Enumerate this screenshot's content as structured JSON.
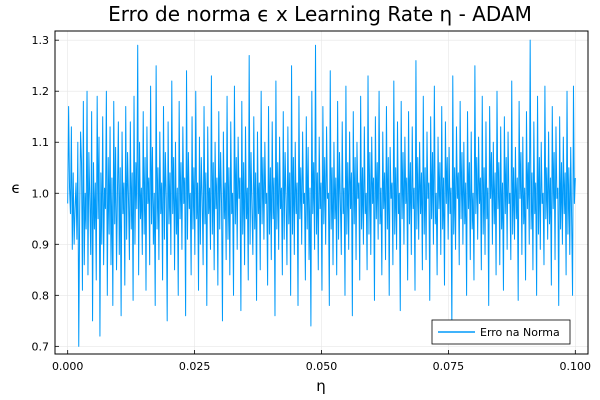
{
  "chart_data": {
    "type": "line",
    "title": "Erro de norma ϵ x Learning Rate η - ADAM",
    "xlabel": "η",
    "ylabel": "ϵ",
    "xlim": [
      -0.0025,
      0.1025
    ],
    "ylim": [
      0.685,
      1.318
    ],
    "xticks": [
      0.0,
      0.025,
      0.05,
      0.075,
      0.1
    ],
    "xtick_labels": [
      "0.000",
      "0.025",
      "0.050",
      "0.075",
      "0.100"
    ],
    "yticks": [
      0.7,
      0.8,
      0.9,
      1.0,
      1.1,
      1.2,
      1.3
    ],
    "ytick_labels": [
      "0.7",
      "0.8",
      "0.9",
      "1.0",
      "1.1",
      "1.2",
      "1.3"
    ],
    "grid": true,
    "legend_position": "bottom-right",
    "series": [
      {
        "name": "Erro na Norma",
        "color": "#009AFA",
        "x_start": 0.0,
        "x_end": 0.1,
        "y": [
          0.98,
          1.17,
          1.01,
          0.96,
          1.13,
          0.89,
          1.04,
          0.9,
          0.97,
          1.02,
          0.91,
          1.1,
          0.7,
          0.96,
          1.12,
          1.06,
          0.81,
          1.18,
          0.86,
          1.0,
          0.93,
          1.2,
          0.84,
          1.08,
          0.99,
          0.88,
          1.16,
          0.75,
          1.06,
          0.93,
          1.02,
          0.83,
          1.19,
          0.95,
          1.11,
          0.72,
          1.04,
          0.9,
          1.15,
          0.86,
          1.01,
          0.97,
          1.2,
          0.8,
          1.07,
          0.92,
          1.13,
          0.86,
          1.03,
          0.78,
          1.18,
          0.94,
          1.09,
          0.85,
          1.0,
          1.14,
          0.88,
          1.05,
          0.76,
          1.12,
          0.96,
          1.02,
          0.82,
          1.17,
          0.91,
          1.08,
          0.99,
          0.87,
          1.14,
          0.93,
          1.04,
          0.79,
          1.19,
          0.9,
          1.06,
          0.97,
          1.29,
          0.84,
          1.1,
          0.95,
          1.01,
          0.88,
          1.16,
          0.92,
          1.07,
          0.81,
          1.13,
          0.98,
          1.03,
          0.86,
          1.21,
          0.94,
          1.09,
          0.9,
          1.0,
          0.78,
          1.25,
          0.93,
          1.05,
          0.87,
          1.12,
          0.96,
          1.02,
          0.83,
          1.17,
          0.91,
          1.08,
          0.99,
          0.75,
          1.14,
          0.94,
          1.04,
          0.88,
          1.22,
          0.96,
          1.07,
          0.85,
          1.1,
          0.92,
          1.01,
          0.8,
          1.18,
          0.95,
          1.06,
          0.89,
          1.13,
          0.98,
          1.03,
          0.76,
          1.24,
          0.91,
          1.08,
          0.97,
          1.0,
          0.84,
          1.15,
          0.93,
          1.05,
          0.88,
          1.2,
          0.95,
          1.02,
          0.81,
          1.11,
          0.9,
          1.07,
          0.99,
          0.86,
          1.17,
          0.94,
          1.04,
          0.78,
          1.13,
          0.96,
          1.01,
          0.89,
          1.23,
          0.92,
          1.06,
          0.85,
          1.1,
          0.97,
          1.03,
          0.82,
          1.16,
          0.93,
          1.08,
          0.98,
          0.75,
          1.12,
          0.95,
          1.02,
          0.87,
          1.19,
          0.91,
          1.05,
          0.84,
          1.14,
          0.96,
          1.0,
          0.8,
          1.21,
          0.94,
          1.07,
          0.89,
          1.11,
          0.99,
          1.03,
          0.77,
          1.18,
          0.92,
          1.06,
          0.86,
          1.13,
          0.95,
          1.01,
          0.83,
          1.27,
          0.9,
          1.08,
          0.97,
          0.88,
          1.15,
          0.93,
          1.04,
          0.79,
          1.12,
          0.96,
          1.02,
          0.85,
          1.2,
          0.94,
          1.07,
          0.91,
          1.1,
          0.98,
          1.0,
          0.82,
          1.17,
          0.92,
          1.05,
          0.87,
          1.14,
          0.95,
          1.03,
          0.76,
          1.22,
          0.93,
          1.06,
          0.89,
          1.11,
          0.97,
          1.01,
          0.84,
          1.16,
          0.91,
          1.08,
          0.99,
          0.86,
          1.13,
          0.94,
          1.04,
          0.8,
          1.25,
          0.92,
          1.07,
          0.88,
          1.1,
          0.96,
          1.02,
          0.78,
          1.19,
          0.95,
          1.05,
          0.9,
          1.12,
          0.98,
          1.0,
          0.83,
          1.15,
          0.93,
          1.09,
          0.87,
          1.01,
          0.74,
          1.2,
          0.96,
          1.06,
          0.89,
          1.29,
          0.92,
          1.04,
          0.85,
          1.11,
          0.97,
          1.02,
          0.81,
          1.17,
          0.94,
          1.07,
          0.9,
          1.13,
          0.99,
          1.0,
          0.78,
          1.24,
          0.93,
          1.05,
          0.86,
          1.1,
          0.95,
          1.03,
          0.84,
          1.18,
          0.91,
          1.08,
          0.98,
          0.88,
          1.14,
          0.96,
          1.01,
          0.8,
          1.21,
          0.92,
          1.06,
          0.89,
          1.12,
          0.97,
          1.04,
          0.76,
          1.16,
          0.94,
          1.07,
          0.87,
          1.1,
          0.99,
          1.02,
          0.83,
          1.19,
          0.93,
          1.05,
          0.9,
          1.13,
          0.96,
          1.0,
          0.85,
          1.23,
          0.92,
          1.08,
          0.88,
          1.11,
          0.98,
          1.03,
          0.79,
          1.15,
          0.95,
          1.06,
          0.91,
          1.2,
          0.94,
          1.01,
          0.84,
          1.12,
          0.97,
          1.04,
          0.87,
          1.17,
          0.93,
          1.07,
          0.8,
          1.09,
          0.99,
          1.02,
          0.86,
          1.22,
          0.92,
          1.05,
          0.89,
          1.14,
          0.96,
          1.0,
          0.77,
          1.18,
          0.95,
          1.08,
          0.9,
          1.11,
          0.98,
          1.03,
          0.83,
          1.16,
          0.94,
          1.06,
          0.88,
          1.13,
          0.97,
          1.01,
          0.81,
          1.26,
          0.93,
          1.07,
          0.91,
          1.1,
          0.96,
          1.04,
          0.85,
          1.19,
          0.92,
          1.05,
          0.87,
          1.12,
          0.99,
          1.02,
          0.79,
          1.15,
          0.95,
          1.08,
          0.9,
          1.21,
          0.94,
          1.0,
          0.84,
          1.11,
          0.97,
          1.06,
          0.88,
          1.17,
          0.93,
          1.03,
          0.82,
          1.14,
          0.98,
          1.07,
          0.91,
          1.09,
          0.96,
          1.01,
          0.73,
          1.23,
          0.92,
          1.05,
          0.89,
          1.13,
          0.99,
          1.04,
          0.86,
          1.18,
          0.95,
          1.08,
          0.9,
          1.1,
          0.94,
          1.02,
          0.8,
          1.16,
          0.97,
          1.06,
          0.87,
          1.12,
          0.93,
          1.0,
          0.83,
          1.25,
          0.96,
          1.07,
          0.91,
          1.11,
          0.98,
          1.03,
          0.85,
          1.19,
          0.92,
          1.05,
          0.88,
          1.14,
          0.95,
          1.01,
          0.78,
          1.17,
          0.99,
          1.08,
          0.9,
          1.1,
          0.94,
          1.04,
          0.84,
          1.2,
          0.97,
          1.06,
          0.86,
          1.13,
          0.93,
          1.02,
          0.81,
          1.15,
          0.96,
          1.07,
          0.89,
          1.12,
          0.98,
          1.0,
          0.87,
          1.22,
          0.92,
          1.05,
          0.91,
          1.09,
          0.95,
          1.03,
          0.79,
          1.18,
          0.99,
          1.08,
          0.88,
          1.11,
          0.94,
          1.01,
          0.83,
          1.16,
          0.97,
          1.06,
          0.9,
          1.3,
          0.93,
          1.04,
          0.85,
          1.14,
          0.96,
          1.02,
          0.8,
          1.19,
          0.92,
          1.07,
          0.89,
          1.1,
          0.98,
          1.0,
          0.86,
          1.21,
          0.95,
          1.05,
          0.91,
          1.12,
          0.94,
          1.03,
          0.82,
          1.17,
          0.97,
          1.08,
          0.87,
          1.13,
          0.99,
          1.01,
          0.78,
          1.15,
          0.93,
          1.06,
          0.9,
          1.11,
          0.96,
          1.04,
          0.84,
          1.2,
          0.92,
          1.05,
          0.88,
          1.09,
          0.95,
          0.8,
          1.21,
          0.98,
          1.03
        ]
      }
    ]
  }
}
